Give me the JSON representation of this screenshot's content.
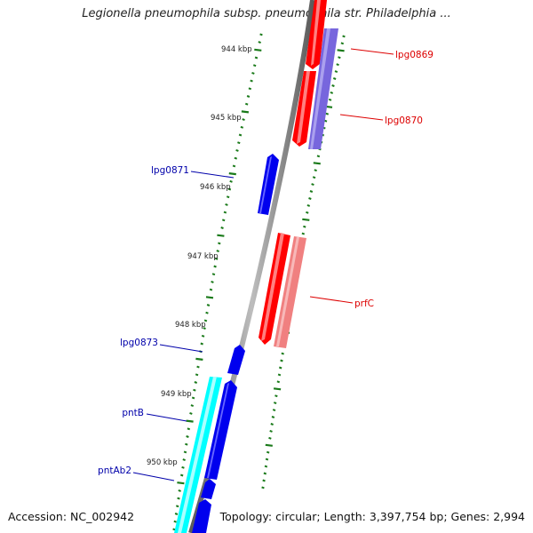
{
  "title": "Legionella pneumophila subsp. pneumophila str. Philadelphia ...",
  "footer": {
    "accession": "Accession: NC_002942",
    "summary": "Topology: circular; Length: 3,397,754 bp; Genes: 2,994"
  },
  "scale_labels": [
    "944 kbp",
    "945 kbp",
    "946 kbp",
    "947 kbp",
    "948 kbp",
    "949 kbp",
    "950 kbp"
  ],
  "genes": [
    {
      "name": "lpg0869",
      "color": "#dd0000"
    },
    {
      "name": "lpg0870",
      "color": "#dd0000"
    },
    {
      "name": "lpg0871",
      "color": "#0000aa"
    },
    {
      "name": "prfC",
      "color": "#dd0000"
    },
    {
      "name": "lpg0873",
      "color": "#0000aa"
    },
    {
      "name": "pntB",
      "color": "#0000aa"
    },
    {
      "name": "pntAb2",
      "color": "#0000aa"
    }
  ],
  "colors": {
    "forward_gene": "#ff0000",
    "forward_gene_light": "#f08080",
    "reverse_gene": "#0000ee",
    "cyan_gene": "#00ffff",
    "violet_gene": "#7766dd",
    "backbone": "#888888",
    "tick": "#1a7a1a"
  }
}
